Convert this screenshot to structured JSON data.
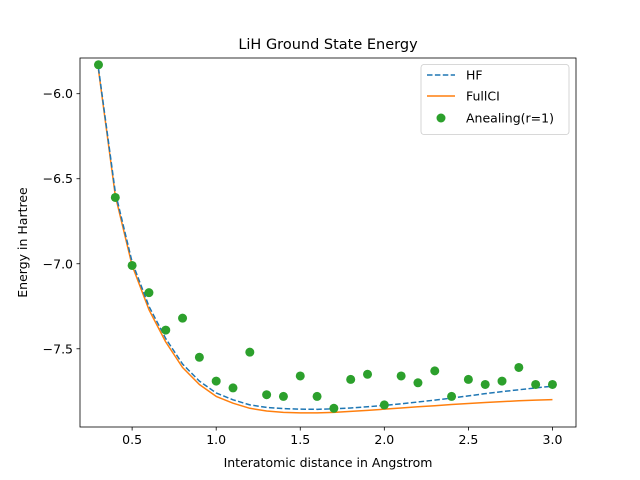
{
  "chart_data": {
    "type": "line",
    "title": "LiH Ground State Energy",
    "xlabel": "Interatomic distance in Angstrom",
    "ylabel": "Energy in Hartree",
    "xlim": [
      0.19,
      3.14
    ],
    "ylim": [
      -7.96,
      -5.79
    ],
    "xticks": [
      0.5,
      1.0,
      1.5,
      2.0,
      2.5,
      3.0
    ],
    "xtick_labels": [
      "0.5",
      "1.0",
      "1.5",
      "2.0",
      "2.5",
      "3.0"
    ],
    "yticks": [
      -7.5,
      -7.0,
      -6.5,
      -6.0
    ],
    "ytick_labels": [
      "−7.5",
      "−7.0",
      "−6.5",
      "−6.0"
    ],
    "grid": false,
    "legend_position": "top-right",
    "colors": {
      "hf": "#1f77b4",
      "fullci": "#ff7f0e",
      "annealing": "#2ca02c"
    },
    "series": [
      {
        "name": "HF",
        "style": "dashed-line",
        "x": [
          0.3,
          0.4,
          0.5,
          0.6,
          0.7,
          0.8,
          0.9,
          1.0,
          1.1,
          1.2,
          1.3,
          1.4,
          1.5,
          1.6,
          1.7,
          1.8,
          1.9,
          2.0,
          2.1,
          2.2,
          2.3,
          2.4,
          2.5,
          2.6,
          2.7,
          2.8,
          2.9,
          3.0
        ],
        "y": [
          -5.85,
          -6.58,
          -6.99,
          -7.25,
          -7.44,
          -7.59,
          -7.69,
          -7.76,
          -7.8,
          -7.83,
          -7.845,
          -7.852,
          -7.855,
          -7.856,
          -7.853,
          -7.848,
          -7.841,
          -7.833,
          -7.824,
          -7.813,
          -7.802,
          -7.79,
          -7.777,
          -7.764,
          -7.752,
          -7.741,
          -7.73,
          -7.72
        ]
      },
      {
        "name": "FullCI",
        "style": "solid-line",
        "x": [
          0.3,
          0.4,
          0.5,
          0.6,
          0.7,
          0.8,
          0.9,
          1.0,
          1.1,
          1.2,
          1.3,
          1.4,
          1.5,
          1.6,
          1.7,
          1.8,
          1.9,
          2.0,
          2.1,
          2.2,
          2.3,
          2.4,
          2.5,
          2.6,
          2.7,
          2.8,
          2.9,
          3.0
        ],
        "y": [
          -5.86,
          -6.6,
          -7.01,
          -7.27,
          -7.46,
          -7.61,
          -7.71,
          -7.78,
          -7.82,
          -7.85,
          -7.866,
          -7.874,
          -7.877,
          -7.877,
          -7.874,
          -7.868,
          -7.862,
          -7.855,
          -7.848,
          -7.841,
          -7.835,
          -7.828,
          -7.822,
          -7.816,
          -7.811,
          -7.806,
          -7.802,
          -7.799
        ]
      },
      {
        "name": "Anealing(r=1)",
        "style": "markers",
        "x": [
          0.3,
          0.4,
          0.5,
          0.6,
          0.7,
          0.8,
          0.9,
          1.0,
          1.1,
          1.2,
          1.3,
          1.4,
          1.5,
          1.6,
          1.7,
          1.8,
          1.9,
          2.0,
          2.1,
          2.2,
          2.3,
          2.4,
          2.5,
          2.6,
          2.7,
          2.8,
          2.9,
          3.0
        ],
        "y": [
          -5.83,
          -6.61,
          -7.01,
          -7.17,
          -7.39,
          -7.32,
          -7.55,
          -7.69,
          -7.73,
          -7.52,
          -7.77,
          -7.78,
          -7.66,
          -7.78,
          -7.85,
          -7.68,
          -7.65,
          -7.83,
          -7.66,
          -7.7,
          -7.63,
          -7.78,
          -7.68,
          -7.71,
          -7.69,
          -7.61,
          -7.71,
          -7.71
        ]
      }
    ]
  }
}
